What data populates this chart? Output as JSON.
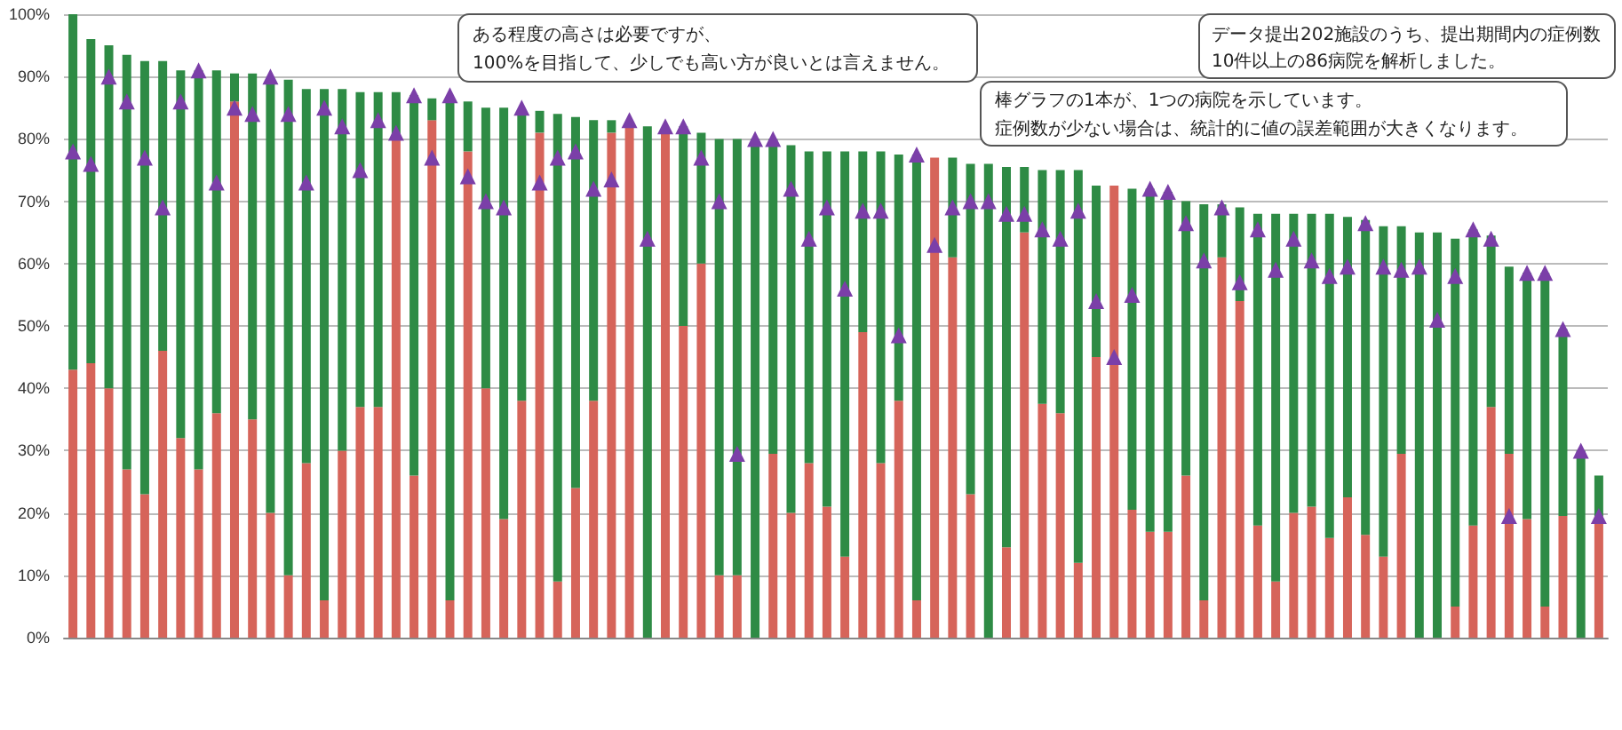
{
  "chart_data": {
    "type": "bar",
    "stacked": true,
    "grid": "y",
    "categories": [
      null,
      null,
      null,
      null,
      null,
      null,
      null,
      null,
      null,
      null,
      null,
      null,
      null,
      null,
      null,
      null,
      null,
      null,
      null,
      null,
      null,
      null,
      null,
      null,
      null,
      null,
      null,
      null,
      null,
      null,
      null,
      null,
      null,
      null,
      null,
      null,
      null,
      null,
      null,
      null,
      null,
      null,
      null,
      null,
      null,
      null,
      null,
      null,
      null,
      null,
      null,
      null,
      null,
      null,
      null,
      null,
      null,
      null,
      null,
      null,
      null,
      null,
      null,
      null,
      null,
      null,
      null,
      null,
      null,
      null,
      null,
      null,
      null,
      null,
      null,
      null,
      null,
      null,
      null,
      null,
      null,
      null,
      null,
      null,
      null,
      null
    ],
    "ylim": [
      0,
      100
    ],
    "yticks": [
      {
        "value": 0,
        "label": "0%"
      },
      {
        "value": 10,
        "label": "10%"
      },
      {
        "value": 20,
        "label": "20%"
      },
      {
        "value": 30,
        "label": "30%"
      },
      {
        "value": 40,
        "label": "40%"
      },
      {
        "value": 50,
        "label": "50%"
      },
      {
        "value": 60,
        "label": "60%"
      },
      {
        "value": 70,
        "label": "70%"
      },
      {
        "value": 80,
        "label": "80%"
      },
      {
        "value": 90,
        "label": "90%"
      },
      {
        "value": 100,
        "label": "100%"
      }
    ],
    "series": [
      {
        "color": "#d6645a",
        "values": [
          43,
          44,
          40,
          27,
          23,
          46,
          32,
          27,
          36,
          86,
          35,
          20,
          10,
          28,
          6,
          30,
          37,
          37,
          80,
          26,
          83,
          6,
          78,
          40,
          19,
          38,
          81,
          9,
          24,
          38,
          81,
          82,
          0,
          81.5,
          50,
          60,
          10,
          10,
          0,
          29.5,
          20,
          28,
          21,
          13,
          49,
          28,
          38,
          6,
          77,
          61,
          23,
          0,
          14.5,
          65,
          37.5,
          36,
          12,
          45,
          72.5,
          20.5,
          17,
          17,
          26,
          6,
          61,
          54,
          18,
          9,
          20,
          21,
          16,
          22.5,
          16.5,
          13,
          29.5,
          0,
          0,
          5,
          18,
          37,
          29.5,
          19,
          5,
          19.5,
          0,
          19.5
        ]
      },
      {
        "color": "#2e8b45",
        "values": [
          57,
          52,
          55,
          66.5,
          69.5,
          46.5,
          59,
          64,
          55,
          4.5,
          55.5,
          69.5,
          79.5,
          60,
          82,
          58,
          50.5,
          50.5,
          7.5,
          61,
          3.5,
          80.5,
          8,
          45,
          66,
          46.5,
          3.5,
          75,
          59.5,
          45,
          2,
          null,
          82,
          null,
          32,
          21,
          70,
          70,
          80,
          50.5,
          59,
          50,
          57,
          65,
          29,
          50,
          39.5,
          71.5,
          0,
          16,
          53,
          76,
          61,
          10.5,
          37.5,
          39,
          63,
          27.5,
          0,
          51.5,
          55,
          54.5,
          44,
          63.5,
          8.5,
          15,
          50,
          59,
          48,
          47,
          52,
          45,
          50.5,
          53,
          36.5,
          65,
          65,
          59,
          47.5,
          27.5,
          30,
          39.5,
          53.5,
          30,
          30,
          6.5
        ]
      },
      {
        "type": "scatter",
        "color": "#7b3fa8",
        "marker": "triangle",
        "values": [
          78,
          76,
          90,
          86,
          77,
          69,
          86,
          91,
          73,
          85,
          84,
          90,
          84,
          73,
          85,
          82,
          75,
          83,
          81,
          87,
          77,
          87,
          74,
          70,
          69,
          85,
          73,
          77,
          78,
          72,
          73.5,
          83,
          64,
          82,
          82,
          77,
          70,
          29.5,
          80,
          80,
          72,
          64,
          69,
          56,
          68.5,
          68.5,
          48.5,
          77.5,
          63,
          69,
          70,
          70,
          68,
          68,
          65.5,
          64,
          68.5,
          54,
          45,
          55,
          72,
          71.5,
          66.5,
          60.5,
          69,
          57,
          65.5,
          59,
          64,
          60.5,
          58,
          59.5,
          66.5,
          59.5,
          59,
          59.5,
          51,
          58,
          65.5,
          64,
          19.5,
          58.5,
          58.5,
          49.5,
          30,
          19.5
        ]
      }
    ],
    "annotations": [
      "ある程度の高さは必要ですが、",
      "100%を目指して、少しでも高い方が良いとは言えません。",
      "データ提出202施設のうち、提出期間内の症例数",
      "10件以上の86病院を解析しました。",
      "棒グラフの1本が、1つの病院を示しています。",
      "症例数が少ない場合は、統計的に値の誤差範囲が大きくなります。"
    ]
  }
}
